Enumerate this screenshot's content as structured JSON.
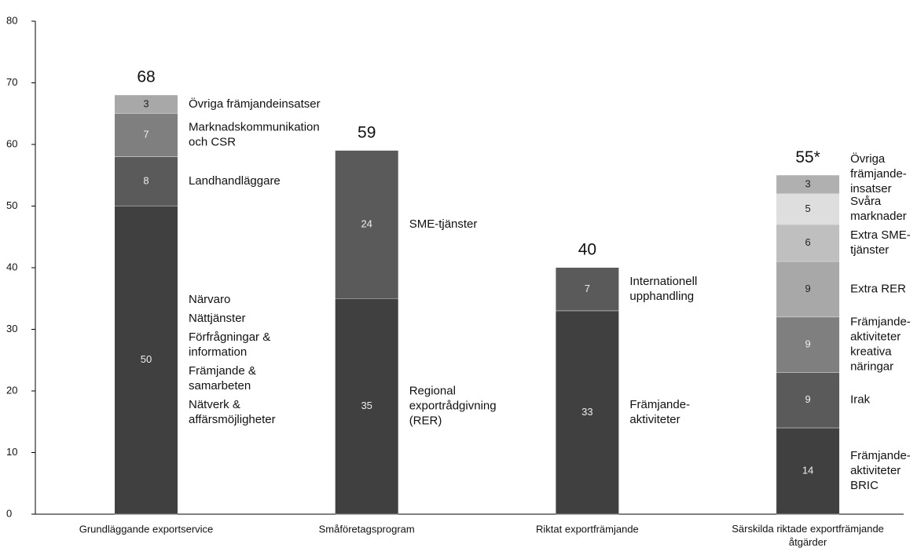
{
  "chart_data": {
    "type": "stacked_bar",
    "categories": [
      "Grundläggande exportservice",
      "Småföretagsprogram",
      "Riktat exportfrämjande",
      "Särskilda riktade exportfrämjande åtgärder"
    ],
    "stacks": [
      {
        "segments": [
          {
            "value": 50,
            "color": "#404040",
            "labels": [
              [
                "Närvaro"
              ],
              [
                "Nättjänster"
              ],
              [
                "Förfrågningar &",
                "information"
              ],
              [
                "Främjande &",
                "samarbeten"
              ],
              [
                "Nätverk &",
                "affärsmöjligheter"
              ]
            ]
          },
          {
            "value": 8,
            "color": "#5a5a5a",
            "labels": [
              [
                "Landhandläggare"
              ]
            ]
          },
          {
            "value": 7,
            "color": "#7f7f7f",
            "labels": [
              [
                "Marknadskommunikation",
                "och CSR"
              ]
            ]
          },
          {
            "value": 3,
            "color": "#a8a8a8",
            "labels": [
              [
                "Övriga främjandeinsatser"
              ]
            ]
          }
        ]
      },
      {
        "segments": [
          {
            "value": 35,
            "color": "#404040",
            "labels": [
              [
                "Regional",
                "exportrådgivning",
                "(RER)"
              ]
            ]
          },
          {
            "value": 24,
            "color": "#5a5a5a",
            "labels": [
              [
                "SME-tjänster"
              ]
            ]
          }
        ]
      },
      {
        "segments": [
          {
            "value": 33,
            "color": "#404040",
            "labels": [
              [
                "Främjande-",
                "aktiviteter"
              ]
            ]
          },
          {
            "value": 7,
            "color": "#5a5a5a",
            "labels": [
              [
                "Internationell",
                "upphandling"
              ]
            ]
          }
        ]
      },
      {
        "segments": [
          {
            "value": 14,
            "color": "#404040",
            "labels": [
              [
                "Främjande-",
                "aktiviteter",
                "BRIC"
              ]
            ]
          },
          {
            "value": 9,
            "color": "#5a5a5a",
            "labels": [
              [
                "Irak"
              ]
            ]
          },
          {
            "value": 9,
            "color": "#7f7f7f",
            "labels": [
              [
                "Främjande-",
                "aktiviteter",
                "kreativa",
                "näringar"
              ]
            ]
          },
          {
            "value": 9,
            "color": "#a8a8a8",
            "labels": [
              [
                "Extra RER"
              ]
            ]
          },
          {
            "value": 6,
            "color": "#bfbfbf",
            "labels": [
              [
                "Extra SME-",
                "tjänster"
              ]
            ]
          },
          {
            "value": 5,
            "color": "#dedede",
            "labels": [
              [
                "Svåra",
                "marknader"
              ]
            ]
          },
          {
            "value": 3,
            "color": "#b0b0b0",
            "labels": [
              [
                "Övriga",
                "främjande-",
                "insatser"
              ]
            ]
          }
        ]
      }
    ],
    "totals": {
      "values": [
        68,
        59,
        40,
        55
      ],
      "value_labels": [
        "68",
        "59",
        "40",
        "55*"
      ]
    },
    "ylim": [
      0,
      80
    ],
    "yticks": [
      0,
      10,
      20,
      30,
      40,
      50,
      60,
      70,
      80
    ]
  }
}
